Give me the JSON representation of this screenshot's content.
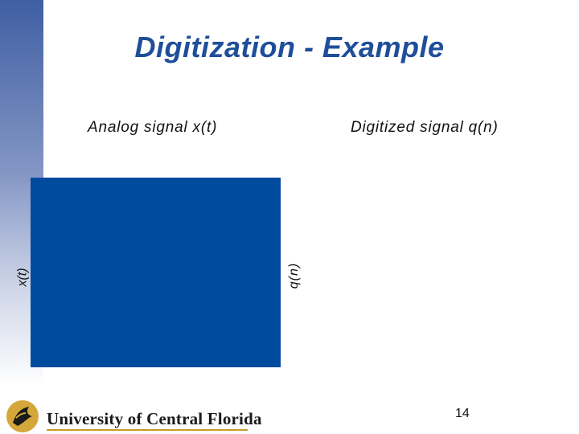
{
  "slide": {
    "title": "Digitization - Example",
    "analog_caption": "Analog signal x(t)",
    "digitized_caption": "Digitized signal q(n)",
    "y_label_analog": "x(t)",
    "y_label_digital": "q(n)",
    "page_number": "14"
  },
  "footer": {
    "institution": "University of Central Florida",
    "logo_icon": "pegasus-logo-icon"
  },
  "colors": {
    "title": "#1f4e9a",
    "panel": "#004b9e",
    "accent_gold": "#c79a2b"
  }
}
